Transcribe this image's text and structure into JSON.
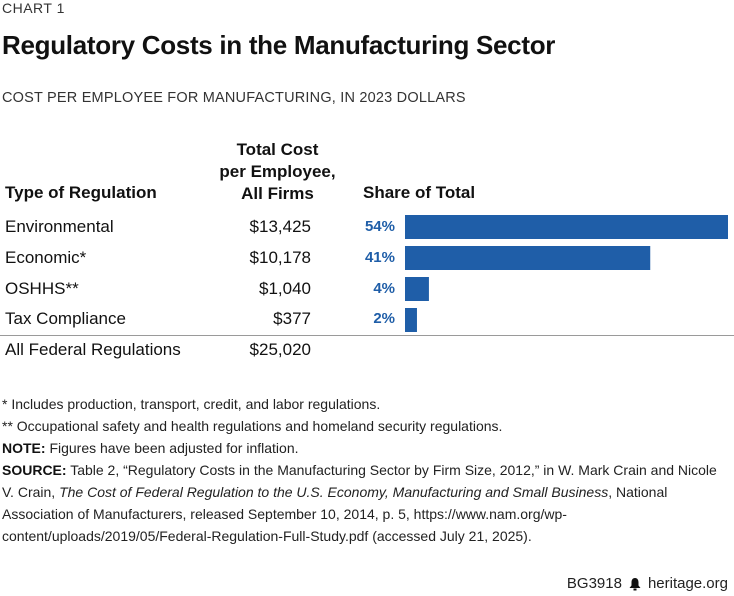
{
  "chart_label": "CHART 1",
  "title": "Regulatory Costs in the Manufacturing Sector",
  "subtitle": "COST PER EMPLOYEE FOR MANUFACTURING, IN 2023 DOLLARS",
  "headers": {
    "type": "Type of Regulation",
    "cost_line1": "Total Cost",
    "cost_line2": "per Employee,",
    "cost_line3": "All Firms",
    "share": "Share of Total"
  },
  "rows": [
    {
      "label": "Environmental",
      "cost": "$13,425",
      "pct_label": "54%"
    },
    {
      "label": "Economic*",
      "cost": "$10,178",
      "pct_label": "41%"
    },
    {
      "label": "OSHHS**",
      "cost": "$1,040",
      "pct_label": "4%"
    },
    {
      "label": "Tax Compliance",
      "cost": "$377",
      "pct_label": "2%"
    }
  ],
  "total": {
    "label": "All Federal Regulations",
    "cost": "$25,020"
  },
  "chart_data": {
    "type": "bar",
    "title": "Regulatory Costs in the Manufacturing Sector",
    "subtitle": "COST PER EMPLOYEE FOR MANUFACTURING, IN 2023 DOLLARS",
    "categories": [
      "Environmental",
      "Economic*",
      "OSHHS**",
      "Tax Compliance"
    ],
    "values": [
      54,
      41,
      4,
      2
    ],
    "cost_per_employee": [
      13425,
      10178,
      1040,
      377
    ],
    "total_cost_per_employee": 25020,
    "xlabel": "Share of Total",
    "ylabel": "Type of Regulation",
    "xlim": [
      0,
      54
    ],
    "orientation": "horizontal",
    "bar_color": "#1f5ea8"
  },
  "notes": {
    "note1": "* Includes production, transport, credit, and labor regulations.",
    "note2": "** Occupational safety and health regulations and homeland security regulations.",
    "note_label": "NOTE:",
    "note_text": " Figures have been adjusted for inflation.",
    "source_label": "SOURCE:",
    "source_text1": " Table 2, “Regulatory Costs in the Manufacturing Sector by Firm Size, 2012,” in W. Mark Crain and Nicole V. Crain, ",
    "source_italic": "The Cost of Federal Regulation to the U.S. Economy, Manufacturing and Small Business",
    "source_text2": ", National Association of Manufacturers, released September 10, 2014, p. 5, https://www.nam.org/wp-content/uploads/2019/05/Federal-Regulation-Full-Study.pdf (accessed July 21, 2025)."
  },
  "footer": {
    "code": "BG3918",
    "site": "heritage.org"
  }
}
